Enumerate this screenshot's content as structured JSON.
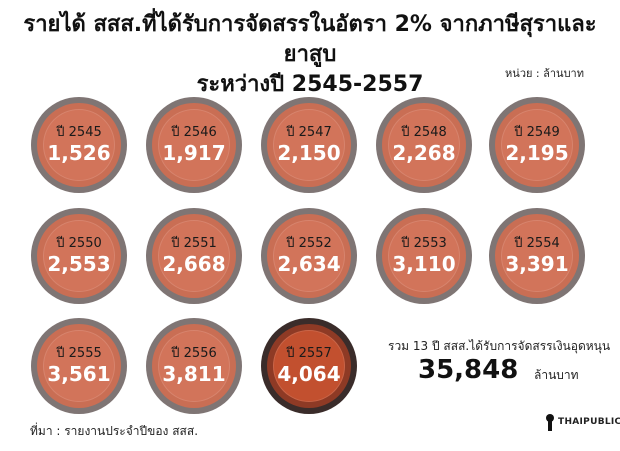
{
  "title_line1": "รายได้ สสส.ที่ได้รับการจัดสรรในอัตรา 2% จากภาษีสุราและยาสูบ",
  "title_line2": "ระหว่างปี 2545-2557",
  "unit_label": "หน่วย : ล้านบาท",
  "year_prefix": "ปี",
  "chart_data": {
    "type": "table",
    "title": "รายได้ สสส.ที่ได้รับการจัดสรรในอัตรา 2% จากภาษีสุราและยาสูบ ระหว่างปี 2545-2557",
    "unit": "ล้านบาท",
    "categories": [
      "2545",
      "2546",
      "2547",
      "2548",
      "2549",
      "2550",
      "2551",
      "2552",
      "2553",
      "2554",
      "2555",
      "2556",
      "2557"
    ],
    "values": [
      1526,
      1917,
      2150,
      2268,
      2195,
      2553,
      2668,
      2634,
      3110,
      3391,
      3561,
      3811,
      4064
    ],
    "value_labels": [
      "1,526",
      "1,917",
      "2,150",
      "2,268",
      "2,195",
      "2,553",
      "2,668",
      "2,634",
      "3,110",
      "3,391",
      "3,561",
      "3,811",
      "4,064"
    ],
    "highlight": "2557"
  },
  "total": {
    "label": "รวม 13 ปี สสส.ได้รับการจัดสรรเงินอุดหนุน",
    "value": "35,848",
    "unit": "ล้านบาท"
  },
  "source": "ที่มา : รายงานประจำปีของ สสส.",
  "logo_text": "THAIPUBLICA",
  "colors": {
    "coin_outer": "#7f7574",
    "coin_inner": "#d2745a",
    "highlight_outer": "#3a2c2a",
    "highlight_inner": "#c2502f"
  }
}
